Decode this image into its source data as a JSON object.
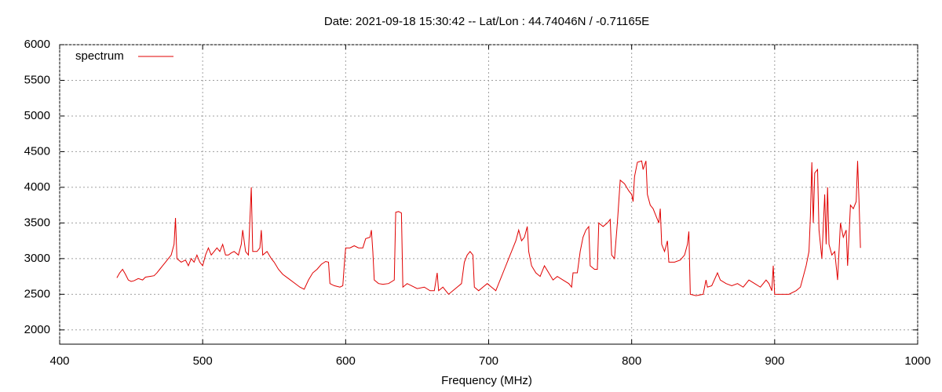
{
  "chart_data": {
    "type": "line",
    "title": "Date: 2021-09-18 15:30:42  --  Lat/Lon : 44.74046N / -0.71165E",
    "x_label": "Frequency (MHz)",
    "x": [
      440,
      442,
      444,
      446,
      448,
      450,
      452,
      455,
      458,
      460,
      463,
      466,
      468,
      470,
      472,
      474,
      476,
      478,
      480,
      481,
      482,
      485,
      488,
      490,
      492,
      494,
      496,
      498,
      500,
      502,
      504,
      506,
      508,
      510,
      512,
      514,
      516,
      518,
      520,
      522,
      525,
      527,
      528,
      530,
      532,
      534,
      535,
      538,
      540,
      541,
      542,
      545,
      548,
      550,
      553,
      556,
      560,
      564,
      568,
      571,
      574,
      577,
      580,
      583,
      586,
      588,
      589,
      592,
      596,
      598,
      599,
      600,
      603,
      606,
      609,
      612,
      614,
      617,
      618,
      619,
      620,
      623,
      626,
      630,
      634,
      635,
      637,
      639,
      640,
      643,
      646,
      650,
      655,
      659,
      662,
      664,
      665,
      668,
      670,
      672,
      675,
      678,
      681,
      683,
      685,
      687,
      689,
      690,
      693,
      696,
      699,
      702,
      705,
      708,
      711,
      714,
      717,
      719,
      721,
      723,
      725,
      727,
      728,
      730,
      733,
      736,
      739,
      742,
      745,
      748,
      752,
      756,
      758,
      759,
      762,
      764,
      766,
      768,
      770,
      771,
      774,
      776,
      777,
      780,
      783,
      785,
      786,
      788,
      790,
      791,
      792,
      795,
      798,
      800,
      801,
      802,
      804,
      807,
      808,
      810,
      811,
      813,
      815,
      817,
      819,
      820,
      821,
      823,
      825,
      826,
      830,
      834,
      837,
      839,
      840,
      841,
      845,
      850,
      852,
      853,
      856,
      860,
      862,
      866,
      870,
      874,
      878,
      882,
      886,
      890,
      894,
      896,
      898,
      899,
      900,
      905,
      910,
      915,
      918,
      920,
      922,
      924,
      925,
      926,
      927,
      928,
      930,
      931,
      933,
      935,
      936,
      937,
      938,
      940,
      942,
      944,
      946,
      948,
      950,
      951,
      953,
      955,
      957,
      958,
      959,
      960
    ],
    "series": [
      {
        "name": "spectrum",
        "color": "#e00000",
        "values": [
          2730,
          2800,
          2850,
          2780,
          2700,
          2680,
          2690,
          2720,
          2700,
          2740,
          2750,
          2760,
          2800,
          2850,
          2900,
          2950,
          3000,
          3050,
          3200,
          3570,
          3000,
          2950,
          2980,
          2900,
          3000,
          2950,
          3050,
          2950,
          2900,
          3050,
          3150,
          3050,
          3100,
          3150,
          3100,
          3200,
          3050,
          3050,
          3080,
          3100,
          3050,
          3200,
          3400,
          3100,
          3050,
          4000,
          3100,
          3100,
          3150,
          3400,
          3050,
          3100,
          3000,
          2950,
          2850,
          2780,
          2720,
          2660,
          2600,
          2570,
          2700,
          2800,
          2850,
          2920,
          2960,
          2950,
          2650,
          2620,
          2600,
          2620,
          2900,
          3150,
          3150,
          3180,
          3150,
          3150,
          3280,
          3300,
          3400,
          3100,
          2700,
          2650,
          2640,
          2650,
          2700,
          3650,
          3660,
          3640,
          2600,
          2650,
          2620,
          2580,
          2600,
          2550,
          2550,
          2800,
          2550,
          2600,
          2550,
          2500,
          2550,
          2600,
          2650,
          2950,
          3050,
          3100,
          3050,
          2600,
          2550,
          2600,
          2650,
          2600,
          2550,
          2700,
          2850,
          3000,
          3150,
          3250,
          3400,
          3250,
          3300,
          3450,
          3100,
          2900,
          2800,
          2750,
          2900,
          2800,
          2700,
          2750,
          2700,
          2650,
          2600,
          2800,
          2800,
          3100,
          3300,
          3400,
          3450,
          2900,
          2850,
          2850,
          3500,
          3450,
          3500,
          3550,
          3050,
          3000,
          3500,
          3800,
          4100,
          4050,
          3950,
          3900,
          3800,
          4150,
          4350,
          4370,
          4250,
          4370,
          3900,
          3750,
          3700,
          3600,
          3500,
          3700,
          3200,
          3100,
          3250,
          2950,
          2950,
          2980,
          3050,
          3200,
          3380,
          2500,
          2480,
          2500,
          2700,
          2600,
          2620,
          2800,
          2700,
          2650,
          2620,
          2650,
          2600,
          2700,
          2650,
          2600,
          2700,
          2650,
          2550,
          2900,
          2500,
          2500,
          2500,
          2550,
          2600,
          2750,
          2900,
          3100,
          3600,
          4350,
          3500,
          4200,
          4250,
          3400,
          3000,
          3900,
          3200,
          4000,
          3200,
          3050,
          3100,
          2700,
          3500,
          3300,
          3400,
          2900,
          3750,
          3700,
          3800,
          4370,
          3800,
          3150
        ]
      }
    ],
    "xlim": [
      400,
      1000
    ],
    "xticks": [
      400,
      500,
      600,
      700,
      800,
      900,
      1000
    ],
    "ylim": [
      1800,
      6000
    ],
    "yticks": [
      2000,
      2500,
      3000,
      3500,
      4000,
      4500,
      5000,
      5500,
      6000
    ],
    "grid": true,
    "legend": "top-left"
  }
}
